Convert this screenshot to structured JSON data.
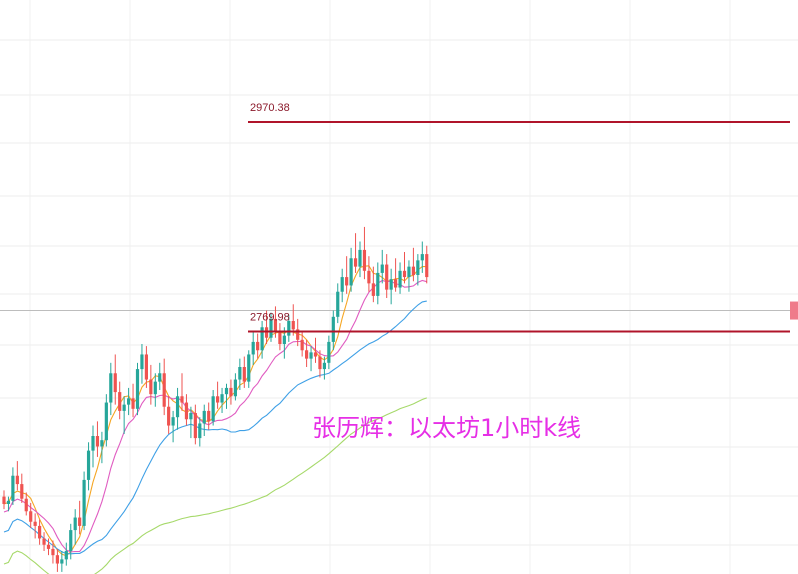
{
  "chart_data": {
    "type": "candlestick",
    "title": "张历辉：以太坊1小时k线",
    "annotation": "张历辉：以太坊1小时k线",
    "levels": [
      {
        "label": "2970.38",
        "value": 2970.38,
        "color": "#b0142a"
      },
      {
        "label": "2769.98",
        "value": 2769.98,
        "color": "#b0142a"
      }
    ],
    "current_price_marker": 2790,
    "grid": true,
    "colors": {
      "up": "#26a69a",
      "down": "#ef5350",
      "ma5": "#f5a623",
      "ma10": "#e05cc1",
      "ma20": "#3fa0e6",
      "ma60": "#a6d96a",
      "level": "#b0142a"
    },
    "candles": [
      [
        2612,
        2618,
        2600,
        2605
      ],
      [
        2605,
        2612,
        2598,
        2608
      ],
      [
        2608,
        2640,
        2604,
        2632
      ],
      [
        2632,
        2646,
        2618,
        2624
      ],
      [
        2624,
        2634,
        2606,
        2610
      ],
      [
        2610,
        2616,
        2594,
        2598
      ],
      [
        2598,
        2606,
        2582,
        2588
      ],
      [
        2588,
        2596,
        2572,
        2584
      ],
      [
        2584,
        2590,
        2566,
        2572
      ],
      [
        2572,
        2578,
        2560,
        2566
      ],
      [
        2566,
        2572,
        2556,
        2562
      ],
      [
        2562,
        2570,
        2548,
        2556
      ],
      [
        2556,
        2562,
        2540,
        2548
      ],
      [
        2548,
        2560,
        2540,
        2552
      ],
      [
        2552,
        2568,
        2546,
        2560
      ],
      [
        2560,
        2586,
        2552,
        2580
      ],
      [
        2580,
        2600,
        2566,
        2592
      ],
      [
        2592,
        2608,
        2576,
        2584
      ],
      [
        2584,
        2636,
        2580,
        2628
      ],
      [
        2628,
        2664,
        2618,
        2656
      ],
      [
        2656,
        2680,
        2640,
        2670
      ],
      [
        2670,
        2684,
        2650,
        2660
      ],
      [
        2660,
        2674,
        2644,
        2666
      ],
      [
        2666,
        2710,
        2660,
        2702
      ],
      [
        2702,
        2740,
        2690,
        2730
      ],
      [
        2730,
        2748,
        2700,
        2712
      ],
      [
        2712,
        2722,
        2686,
        2694
      ],
      [
        2694,
        2708,
        2672,
        2700
      ],
      [
        2700,
        2716,
        2690,
        2706
      ],
      [
        2706,
        2720,
        2688,
        2696
      ],
      [
        2696,
        2740,
        2690,
        2734
      ],
      [
        2734,
        2758,
        2720,
        2748
      ],
      [
        2748,
        2756,
        2716,
        2724
      ],
      [
        2724,
        2738,
        2700,
        2710
      ],
      [
        2710,
        2730,
        2698,
        2722
      ],
      [
        2722,
        2740,
        2714,
        2730
      ],
      [
        2730,
        2744,
        2690,
        2698
      ],
      [
        2698,
        2708,
        2672,
        2680
      ],
      [
        2680,
        2694,
        2664,
        2688
      ],
      [
        2688,
        2716,
        2676,
        2708
      ],
      [
        2708,
        2730,
        2694,
        2702
      ],
      [
        2702,
        2710,
        2680,
        2686
      ],
      [
        2686,
        2698,
        2668,
        2692
      ],
      [
        2692,
        2700,
        2662,
        2668
      ],
      [
        2668,
        2688,
        2660,
        2682
      ],
      [
        2682,
        2700,
        2670,
        2694
      ],
      [
        2694,
        2702,
        2676,
        2684
      ],
      [
        2684,
        2714,
        2680,
        2708
      ],
      [
        2708,
        2722,
        2696,
        2702
      ],
      [
        2702,
        2716,
        2692,
        2710
      ],
      [
        2710,
        2720,
        2696,
        2716
      ],
      [
        2716,
        2724,
        2700,
        2708
      ],
      [
        2708,
        2730,
        2704,
        2724
      ],
      [
        2724,
        2744,
        2714,
        2736
      ],
      [
        2736,
        2746,
        2716,
        2722
      ],
      [
        2722,
        2752,
        2716,
        2748
      ],
      [
        2748,
        2770,
        2738,
        2760
      ],
      [
        2760,
        2768,
        2744,
        2752
      ],
      [
        2752,
        2780,
        2744,
        2774
      ],
      [
        2774,
        2790,
        2758,
        2764
      ],
      [
        2764,
        2788,
        2760,
        2782
      ],
      [
        2782,
        2794,
        2764,
        2770
      ],
      [
        2770,
        2778,
        2752,
        2758
      ],
      [
        2758,
        2774,
        2744,
        2766
      ],
      [
        2766,
        2786,
        2760,
        2780
      ],
      [
        2780,
        2796,
        2766,
        2772
      ],
      [
        2772,
        2782,
        2756,
        2762
      ],
      [
        2762,
        2770,
        2746,
        2752
      ],
      [
        2752,
        2762,
        2736,
        2744
      ],
      [
        2744,
        2756,
        2732,
        2750
      ],
      [
        2750,
        2764,
        2740,
        2746
      ],
      [
        2746,
        2752,
        2726,
        2734
      ],
      [
        2734,
        2746,
        2724,
        2740
      ],
      [
        2740,
        2766,
        2734,
        2760
      ],
      [
        2760,
        2790,
        2752,
        2784
      ],
      [
        2784,
        2816,
        2778,
        2808
      ],
      [
        2808,
        2830,
        2798,
        2822
      ],
      [
        2822,
        2842,
        2806,
        2814
      ],
      [
        2814,
        2850,
        2808,
        2840
      ],
      [
        2840,
        2864,
        2826,
        2832
      ],
      [
        2832,
        2856,
        2822,
        2848
      ],
      [
        2848,
        2870,
        2820,
        2828
      ],
      [
        2828,
        2842,
        2808,
        2816
      ],
      [
        2816,
        2832,
        2798,
        2804
      ],
      [
        2804,
        2836,
        2796,
        2826
      ],
      [
        2826,
        2848,
        2816,
        2834
      ],
      [
        2834,
        2844,
        2802,
        2810
      ],
      [
        2810,
        2830,
        2796,
        2820
      ],
      [
        2820,
        2840,
        2808,
        2812
      ],
      [
        2812,
        2836,
        2806,
        2828
      ],
      [
        2828,
        2846,
        2816,
        2822
      ],
      [
        2822,
        2838,
        2808,
        2832
      ],
      [
        2832,
        2850,
        2818,
        2824
      ],
      [
        2824,
        2844,
        2814,
        2838
      ],
      [
        2838,
        2856,
        2826,
        2844
      ],
      [
        2844,
        2852,
        2816,
        2822
      ]
    ]
  }
}
